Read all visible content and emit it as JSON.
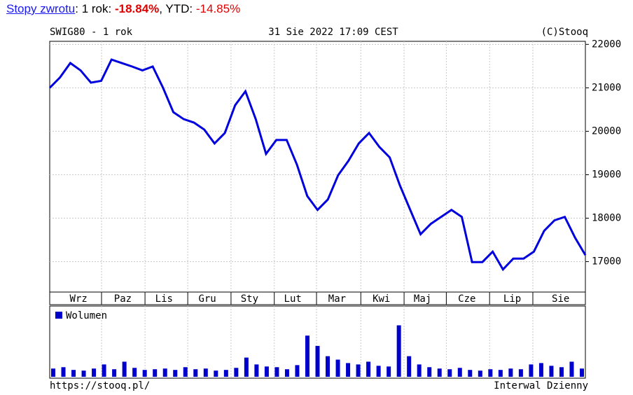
{
  "header": {
    "link": "Stopy zwrotu",
    "period_label": ": 1 rok: ",
    "period_return": "-18.84%",
    "ytd_label": ", YTD: ",
    "ytd_return": "-14.85%"
  },
  "footer": {
    "url": "https://stooq.pl/",
    "interval": "Interwal Dzienny"
  },
  "chart_data": [
    {
      "type": "line",
      "title": "SWIG80 - 1 rok",
      "subtitle": "31 Sie 2022 17:09 CEST",
      "source": "(C)Stooq",
      "color": "#0000dd",
      "x": [
        0,
        1,
        2,
        3,
        4,
        5,
        6,
        7,
        8,
        9,
        10,
        11,
        12,
        13,
        14,
        15,
        16,
        17,
        18,
        19,
        20,
        21,
        22,
        23,
        24,
        25,
        26,
        27,
        28,
        29,
        30,
        31,
        32,
        33,
        34,
        35,
        36,
        37,
        38,
        39,
        40,
        41,
        42,
        43,
        44,
        45,
        46,
        47,
        48,
        49,
        50,
        51,
        52
      ],
      "values": [
        21000,
        21240,
        21570,
        21400,
        21120,
        21160,
        21650,
        21570,
        21490,
        21400,
        21490,
        21000,
        20440,
        20280,
        20200,
        20040,
        19720,
        19960,
        20600,
        20920,
        20280,
        19480,
        19800,
        19800,
        19230,
        18510,
        18190,
        18430,
        18990,
        19320,
        19720,
        19960,
        19640,
        19400,
        18750,
        18190,
        17630,
        17870,
        18030,
        18190,
        18030,
        16990,
        16990,
        17230,
        16820,
        17070,
        17070,
        17230,
        17710,
        17950,
        18030,
        17550,
        17150
      ],
      "xlim": [
        0,
        52
      ],
      "xticks": [
        {
          "value": 2.8,
          "label": "Wrz"
        },
        {
          "value": 7.1,
          "label": "Paz"
        },
        {
          "value": 11.1,
          "label": "Lis"
        },
        {
          "value": 15.3,
          "label": "Gru"
        },
        {
          "value": 19.4,
          "label": "Sty"
        },
        {
          "value": 23.6,
          "label": "Lut"
        },
        {
          "value": 27.9,
          "label": "Mar"
        },
        {
          "value": 32.2,
          "label": "Kwi"
        },
        {
          "value": 36.2,
          "label": "Maj"
        },
        {
          "value": 40.5,
          "label": "Cze"
        },
        {
          "value": 44.9,
          "label": "Lip"
        },
        {
          "value": 49.6,
          "label": "Sie"
        }
      ],
      "xgrid": [
        5.03,
        9.25,
        13.4,
        17.6,
        21.8,
        25.9,
        30.2,
        34.4,
        38.5,
        42.7,
        46.9
      ],
      "ylim": [
        16300,
        22070
      ],
      "yticks": [
        17000,
        18000,
        19000,
        20000,
        21000,
        22000
      ],
      "grid": true
    },
    {
      "type": "bar",
      "x": [
        0,
        1,
        2,
        3,
        4,
        5,
        6,
        7,
        8,
        9,
        10,
        11,
        12,
        13,
        14,
        15,
        16,
        17,
        18,
        19,
        20,
        21,
        22,
        23,
        24,
        25,
        26,
        27,
        28,
        29,
        30,
        31,
        32,
        33,
        34,
        35,
        36,
        37,
        38,
        39,
        40,
        41,
        42,
        43,
        44,
        45,
        46,
        47,
        48,
        49,
        50,
        51,
        52
      ],
      "series": [
        {
          "name": "Wolumen",
          "color": "#0000cc",
          "values": [
            12,
            14,
            10,
            9,
            12,
            18,
            11,
            22,
            13,
            10,
            11,
            12,
            10,
            14,
            11,
            12,
            9,
            10,
            13,
            28,
            18,
            15,
            14,
            11,
            17,
            60,
            45,
            30,
            25,
            20,
            18,
            22,
            16,
            15,
            75,
            30,
            18,
            14,
            12,
            11,
            13,
            10,
            9,
            11,
            10,
            12,
            11,
            18,
            20,
            16,
            14,
            22,
            12
          ]
        }
      ],
      "xlim": [
        0,
        52
      ],
      "ylim": [
        0,
        100
      ],
      "xgrid": [
        5.03,
        9.25,
        13.4,
        17.6,
        21.8,
        25.9,
        30.2,
        34.4,
        38.5,
        42.7,
        46.9
      ],
      "grid": true
    }
  ]
}
